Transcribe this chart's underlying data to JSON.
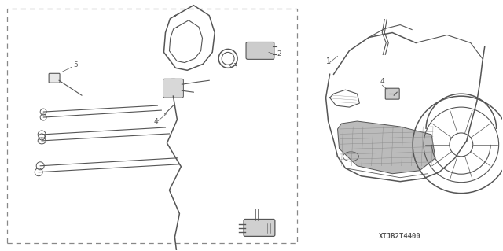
{
  "bg_color": "#ffffff",
  "line_color": "#555555",
  "watermark": "XTJB2T4400",
  "fig_width": 6.4,
  "fig_height": 3.19,
  "dpi": 100
}
